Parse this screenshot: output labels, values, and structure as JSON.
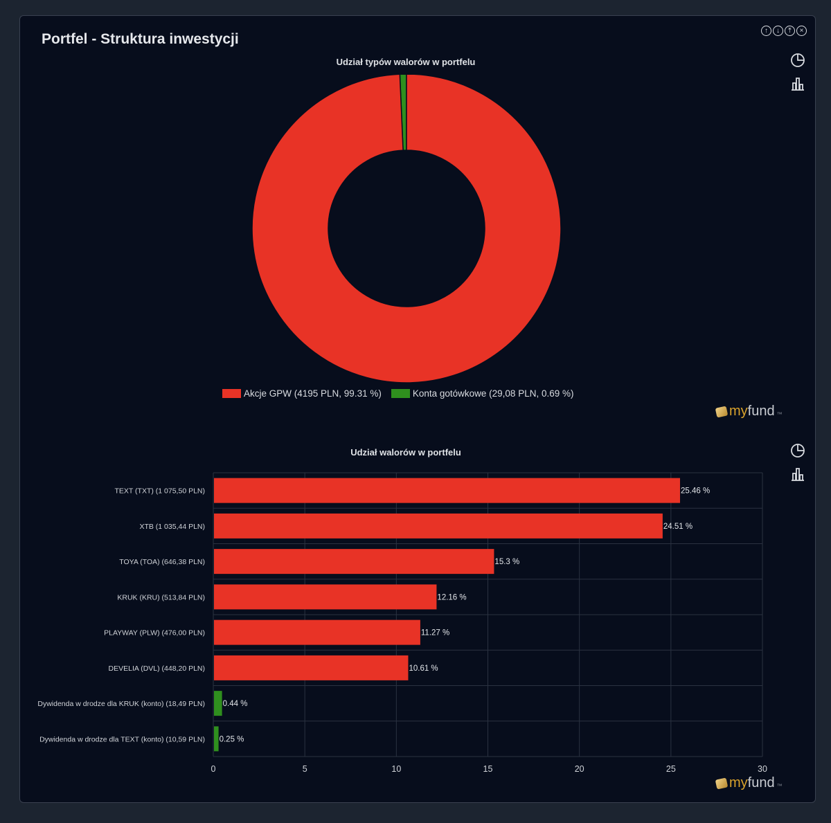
{
  "panel": {
    "title": "Portfel - Struktura inwestycji",
    "controls": [
      {
        "name": "scroll-up-icon",
        "glyph": "↑"
      },
      {
        "name": "scroll-down-icon",
        "glyph": "↓"
      },
      {
        "name": "collapse-icon",
        "glyph": "⤒"
      },
      {
        "name": "close-icon",
        "glyph": "×"
      }
    ]
  },
  "logo": {
    "my": "my",
    "fund": "fund",
    "sup": "™"
  },
  "colors": {
    "red": "#e83326",
    "green": "#2f8f1e",
    "grid": "#2b3241",
    "panel_bg": "#070d1c"
  },
  "chart_data": [
    {
      "type": "pie",
      "variant": "donut",
      "title": "Udział typów walorów w portfelu",
      "slices": [
        {
          "label": "Akcje GPW (4195 PLN, 99.31 %)",
          "value": 99.31,
          "color": "#e83326"
        },
        {
          "label": "Konta gotówkowe (29,08 PLN, 0.69 %)",
          "value": 0.69,
          "color": "#2f8f1e"
        }
      ],
      "legend_position": "bottom"
    },
    {
      "type": "bar",
      "orientation": "horizontal",
      "title": "Udział walorów w portfelu",
      "categories": [
        "TEXT (TXT) (1 075,50 PLN)",
        "XTB (1 035,44 PLN)",
        "TOYA (TOA) (646,38 PLN)",
        "KRUK (KRU) (513,84 PLN)",
        "PLAYWAY (PLW) (476,00 PLN)",
        "DEVELIA (DVL) (448,20 PLN)",
        "Dywidenda w drodze dla KRUK (konto) (18,49 PLN)",
        "Dywidenda w drodze dla TEXT (konto) (10,59 PLN)"
      ],
      "values": [
        25.46,
        24.51,
        15.3,
        12.16,
        11.27,
        10.61,
        0.44,
        0.25
      ],
      "value_labels": [
        "25.46 %",
        "24.51 %",
        "15.3 %",
        "12.16 %",
        "11.27 %",
        "10.61 %",
        "0.44 %",
        "0.25 %"
      ],
      "colors": [
        "#e83326",
        "#e83326",
        "#e83326",
        "#e83326",
        "#e83326",
        "#e83326",
        "#2f8f1e",
        "#2f8f1e"
      ],
      "xlim": [
        0,
        30
      ],
      "xticks": [
        0,
        5,
        10,
        15,
        20,
        25,
        30
      ],
      "grid": true
    }
  ]
}
